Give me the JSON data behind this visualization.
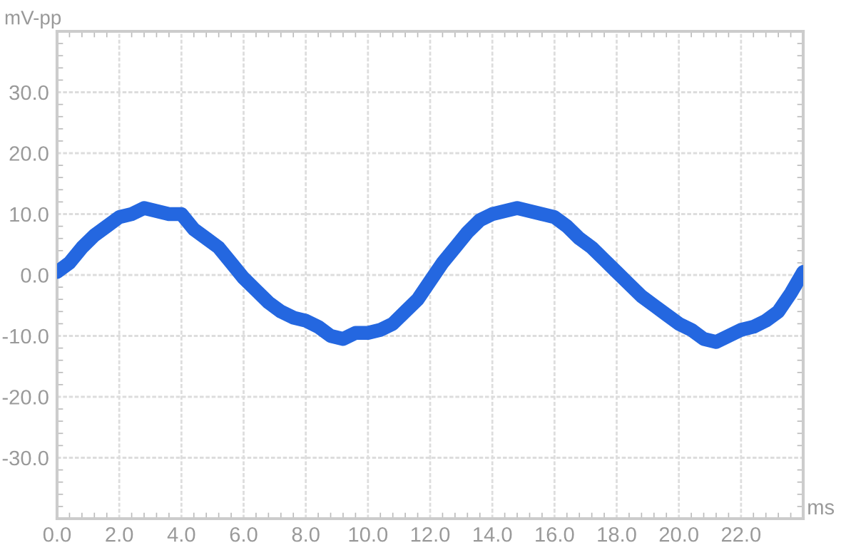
{
  "chart_data": {
    "type": "line",
    "xlabel": "ms",
    "ylabel": "mV-pp",
    "x": [
      0,
      0.4,
      0.8,
      1.2,
      1.6,
      2.0,
      2.4,
      2.8,
      3.2,
      3.6,
      4.0,
      4.4,
      4.8,
      5.2,
      5.6,
      6.0,
      6.4,
      6.8,
      7.2,
      7.6,
      8.0,
      8.4,
      8.8,
      9.2,
      9.6,
      10.0,
      10.4,
      10.8,
      11.2,
      11.6,
      12.0,
      12.4,
      12.8,
      13.2,
      13.6,
      14.0,
      14.4,
      14.8,
      15.2,
      15.6,
      16.0,
      16.4,
      16.8,
      17.2,
      17.6,
      18.0,
      18.4,
      18.8,
      19.2,
      19.6,
      20.0,
      20.4,
      20.8,
      21.2,
      21.6,
      22.0,
      22.4,
      22.8,
      23.2,
      23.6,
      24.0
    ],
    "series": [
      {
        "color": "#2467e0",
        "values": [
          0.5,
          2,
          4.5,
          6.5,
          8,
          9.5,
          10,
          11,
          10.5,
          10,
          10,
          7.5,
          6,
          4.5,
          2,
          -0.5,
          -2.5,
          -4.5,
          -6,
          -7,
          -7.5,
          -8.5,
          -10,
          -10.5,
          -9.5,
          -9.5,
          -9,
          -8,
          -6,
          -4,
          -1,
          2,
          4.5,
          7,
          9,
          10,
          10.5,
          11,
          10.5,
          10,
          9.5,
          8,
          6,
          4.5,
          2.5,
          0.5,
          -1.5,
          -3.5,
          -5,
          -6.5,
          -8,
          -9,
          -10.5,
          -11,
          -10,
          -9,
          -8.5,
          -7.5,
          -6,
          -3,
          0.5
        ]
      }
    ],
    "xlim": [
      0,
      24
    ],
    "ylim": [
      -40,
      40
    ],
    "xticks": [
      {
        "value": 0,
        "label": "0.0"
      },
      {
        "value": 2,
        "label": "2.0"
      },
      {
        "value": 4,
        "label": "4.0"
      },
      {
        "value": 6,
        "label": "6.0"
      },
      {
        "value": 8,
        "label": "8.0"
      },
      {
        "value": 10,
        "label": "10.0"
      },
      {
        "value": 12,
        "label": "12.0"
      },
      {
        "value": 14,
        "label": "14.0"
      },
      {
        "value": 16,
        "label": "16.0"
      },
      {
        "value": 18,
        "label": "18.0"
      },
      {
        "value": 20,
        "label": "20.0"
      },
      {
        "value": 22,
        "label": "22.0"
      }
    ],
    "yticks": [
      {
        "value": -30,
        "label": "-30.0"
      },
      {
        "value": -20,
        "label": "-20.0"
      },
      {
        "value": -10,
        "label": "-10.0"
      },
      {
        "value": 0,
        "label": "0.0"
      },
      {
        "value": 10,
        "label": "10.0"
      },
      {
        "value": 20,
        "label": "20.0"
      },
      {
        "value": 30,
        "label": "30.0"
      }
    ],
    "grid": true,
    "line_style": "solid"
  }
}
